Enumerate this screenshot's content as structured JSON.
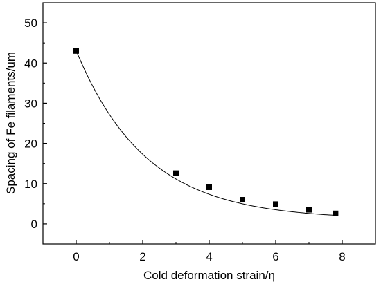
{
  "chart_data": {
    "type": "scatter",
    "xlabel": "Cold deformation strain/η",
    "ylabel": "Spacing of Fe filaments/um",
    "xlim": [
      -1,
      9
    ],
    "ylim": [
      -5,
      55
    ],
    "x_ticks": [
      0,
      2,
      4,
      6,
      8
    ],
    "y_ticks": [
      0,
      10,
      20,
      30,
      40,
      50
    ],
    "x_tick_labels": [
      "0",
      "2",
      "4",
      "6",
      "8"
    ],
    "y_tick_labels": [
      "0",
      "10",
      "20",
      "30",
      "40",
      "50"
    ],
    "grid": false,
    "series": [
      {
        "marker": "square",
        "color": "#000000",
        "points": [
          {
            "x": 0,
            "y": 43.0
          },
          {
            "x": 3,
            "y": 12.6
          },
          {
            "x": 4,
            "y": 9.1
          },
          {
            "x": 5,
            "y": 6.0
          },
          {
            "x": 6,
            "y": 4.9
          },
          {
            "x": 7,
            "y": 3.5
          },
          {
            "x": 7.8,
            "y": 2.6
          }
        ]
      }
    ],
    "fit_curve": {
      "type": "exponential-decay",
      "color": "#000000",
      "x_range": [
        0,
        7.8
      ],
      "y0": 1.1,
      "A": 42.0,
      "t": 2.1
    }
  }
}
